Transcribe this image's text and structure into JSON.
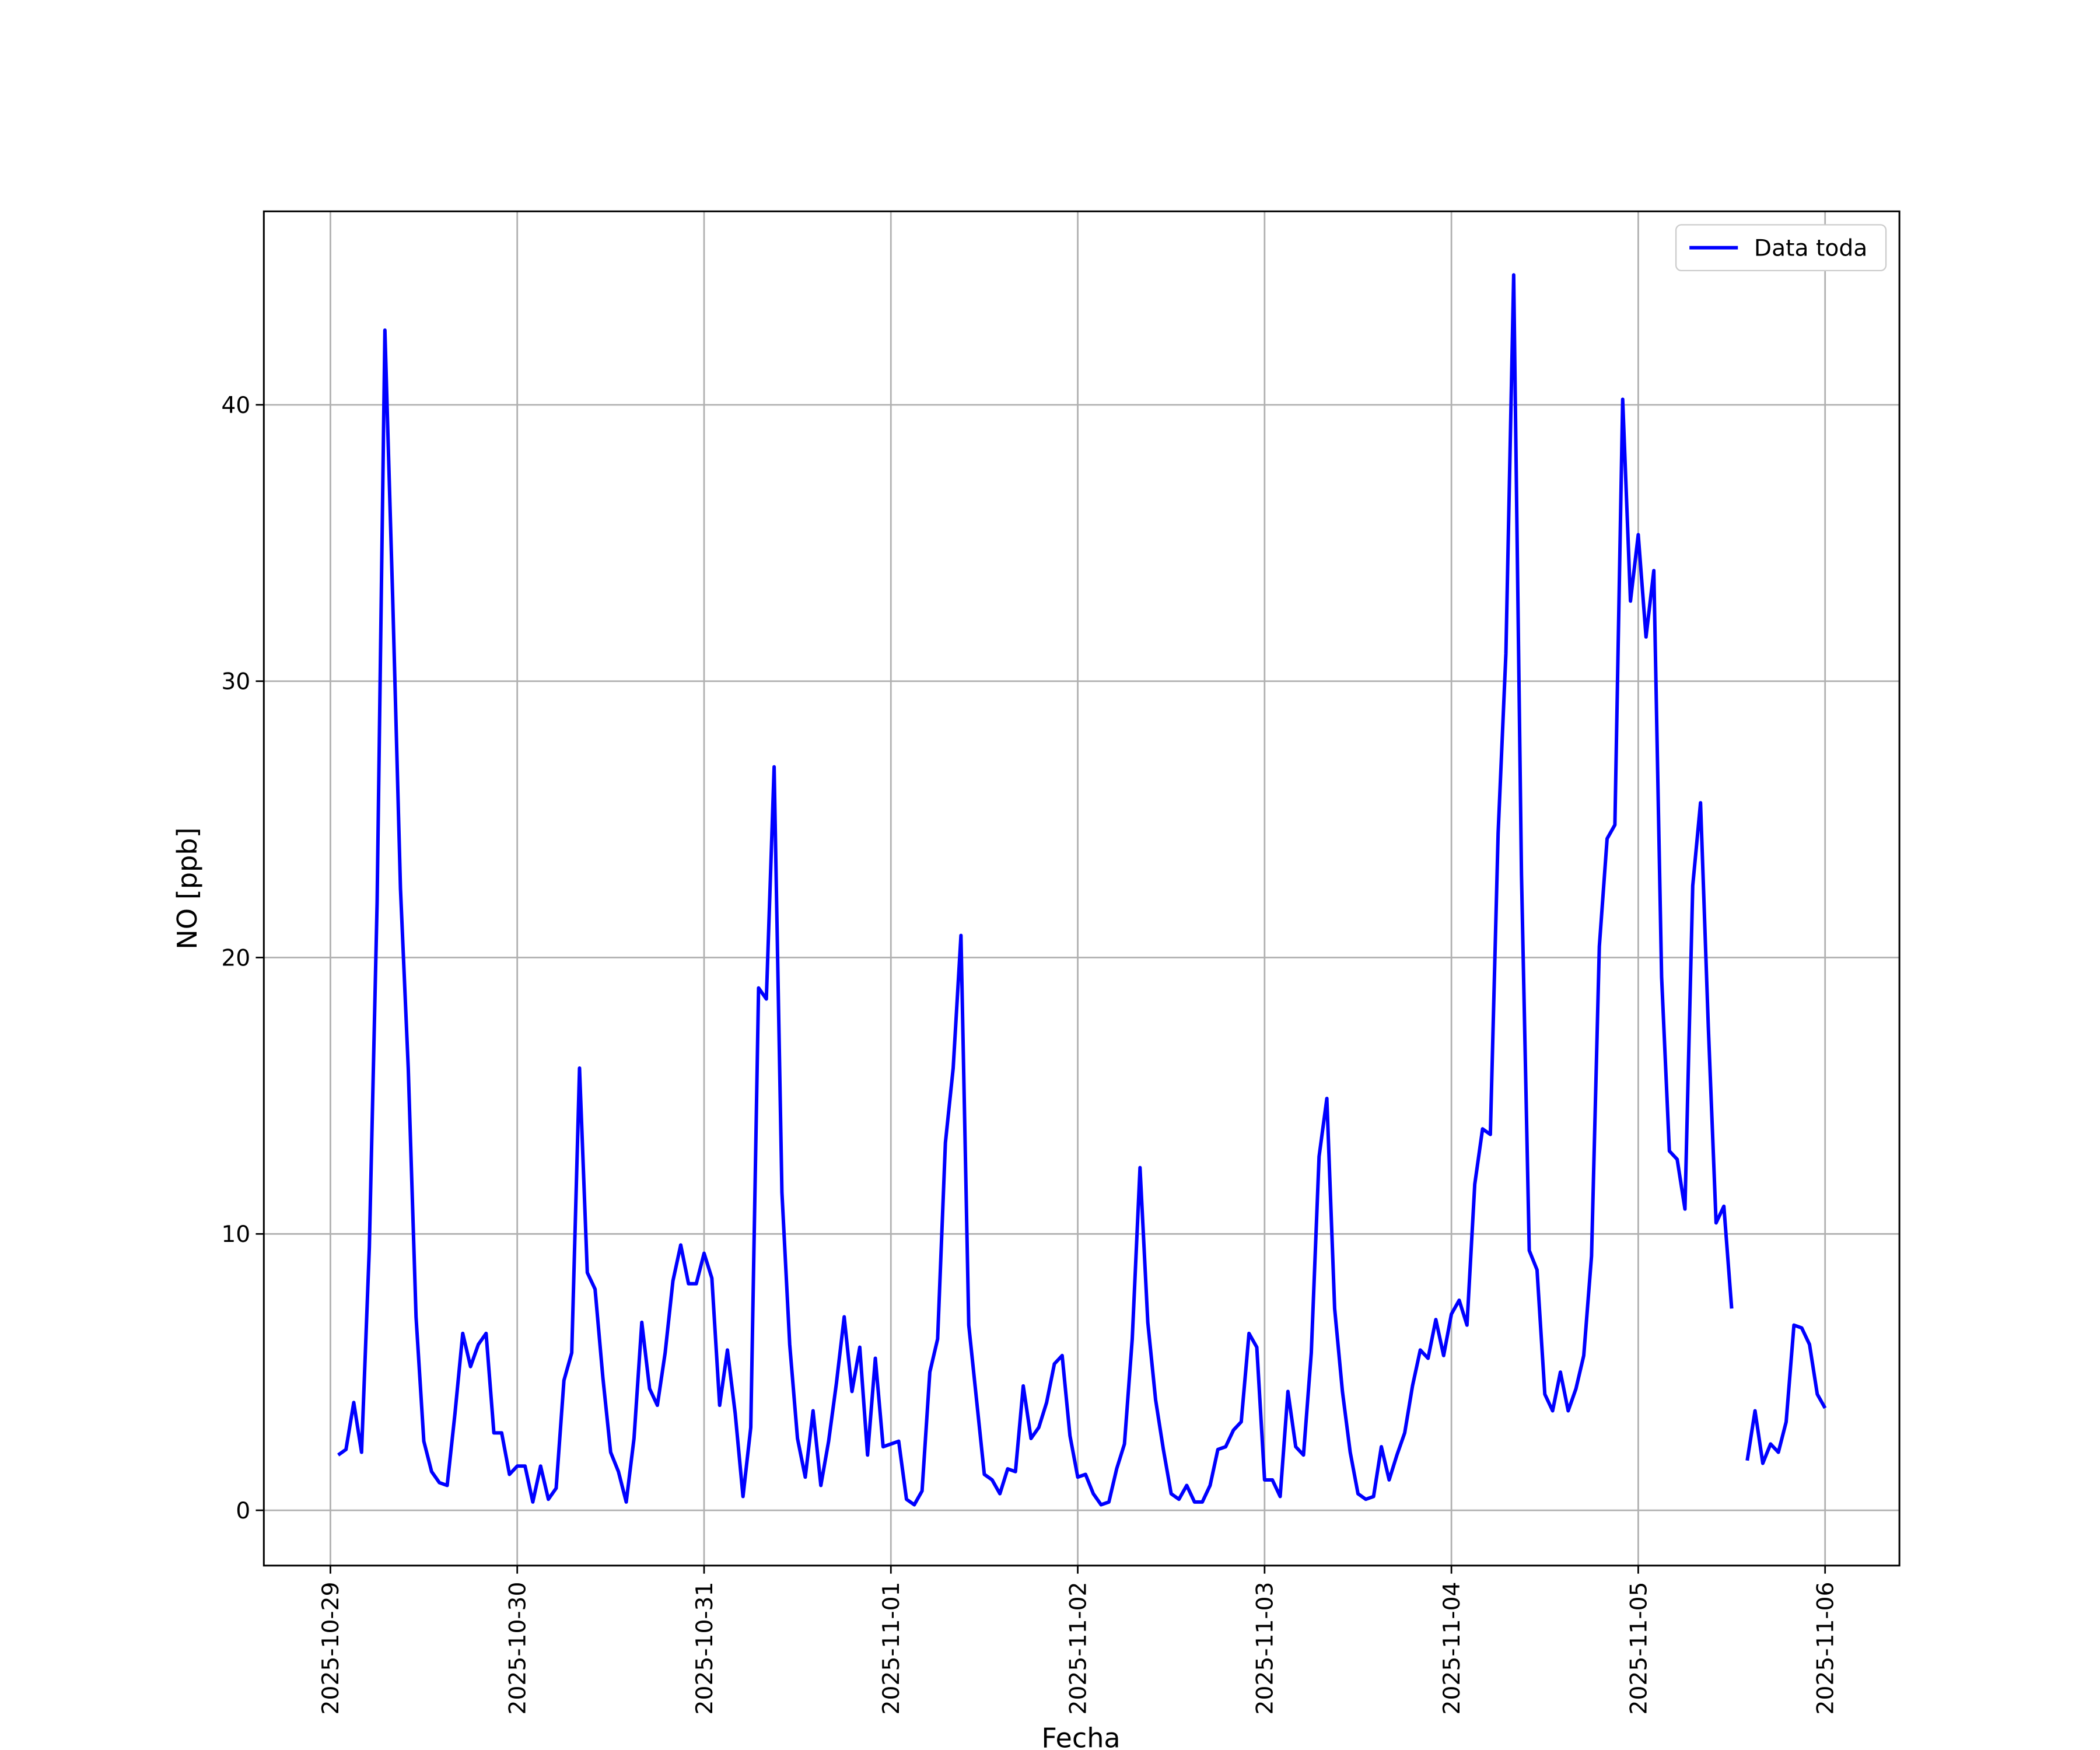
{
  "chart_data": {
    "type": "line",
    "xlabel": "Fecha",
    "ylabel": "NO [ppb]",
    "grid": true,
    "legend": "upper right",
    "x": [
      "2025-10-29T01:00",
      "2025-10-29T02:00",
      "2025-10-29T03:00",
      "2025-10-29T04:00",
      "2025-10-29T05:00",
      "2025-10-29T06:00",
      "2025-10-29T07:00",
      "2025-10-29T08:00",
      "2025-10-29T09:00",
      "2025-10-29T10:00",
      "2025-10-29T11:00",
      "2025-10-29T12:00",
      "2025-10-29T13:00",
      "2025-10-29T14:00",
      "2025-10-29T15:00",
      "2025-10-29T16:00",
      "2025-10-29T17:00",
      "2025-10-29T18:00",
      "2025-10-29T19:00",
      "2025-10-29T20:00",
      "2025-10-29T21:00",
      "2025-10-29T22:00",
      "2025-10-29T23:00",
      "2025-10-30T00:00",
      "2025-10-30T01:00",
      "2025-10-30T02:00",
      "2025-10-30T03:00",
      "2025-10-30T04:00",
      "2025-10-30T05:00",
      "2025-10-30T06:00",
      "2025-10-30T07:00",
      "2025-10-30T08:00",
      "2025-10-30T09:00",
      "2025-10-30T10:00",
      "2025-10-30T11:00",
      "2025-10-30T12:00",
      "2025-10-30T13:00",
      "2025-10-30T14:00",
      "2025-10-30T15:00",
      "2025-10-30T16:00",
      "2025-10-30T17:00",
      "2025-10-30T18:00",
      "2025-10-30T19:00",
      "2025-10-30T20:00",
      "2025-10-30T21:00",
      "2025-10-30T22:00",
      "2025-10-30T23:00",
      "2025-10-31T00:00",
      "2025-10-31T01:00",
      "2025-10-31T02:00",
      "2025-10-31T03:00",
      "2025-10-31T04:00",
      "2025-10-31T05:00",
      "2025-10-31T06:00",
      "2025-10-31T07:00",
      "2025-10-31T08:00",
      "2025-10-31T09:00",
      "2025-10-31T10:00",
      "2025-10-31T11:00",
      "2025-10-31T12:00",
      "2025-10-31T13:00",
      "2025-10-31T14:00",
      "2025-10-31T15:00",
      "2025-10-31T16:00",
      "2025-10-31T17:00",
      "2025-10-31T18:00",
      "2025-10-31T19:00",
      "2025-10-31T20:00",
      "2025-10-31T21:00",
      "2025-10-31T22:00",
      "2025-10-31T23:00",
      "2025-11-01T00:00",
      "2025-11-01T01:00",
      "2025-11-01T02:00",
      "2025-11-01T03:00",
      "2025-11-01T04:00",
      "2025-11-01T05:00",
      "2025-11-01T06:00",
      "2025-11-01T07:00",
      "2025-11-01T08:00",
      "2025-11-01T09:00",
      "2025-11-01T10:00",
      "2025-11-01T11:00",
      "2025-11-01T12:00",
      "2025-11-01T13:00",
      "2025-11-01T14:00",
      "2025-11-01T15:00",
      "2025-11-01T16:00",
      "2025-11-01T17:00",
      "2025-11-01T18:00",
      "2025-11-01T19:00",
      "2025-11-01T20:00",
      "2025-11-01T21:00",
      "2025-11-01T22:00",
      "2025-11-01T23:00",
      "2025-11-02T00:00",
      "2025-11-02T01:00",
      "2025-11-02T02:00",
      "2025-11-02T03:00",
      "2025-11-02T04:00",
      "2025-11-02T05:00",
      "2025-11-02T06:00",
      "2025-11-02T07:00",
      "2025-11-02T08:00",
      "2025-11-02T09:00",
      "2025-11-02T10:00",
      "2025-11-02T11:00",
      "2025-11-02T12:00",
      "2025-11-02T13:00",
      "2025-11-02T14:00",
      "2025-11-02T15:00",
      "2025-11-02T16:00",
      "2025-11-02T17:00",
      "2025-11-02T18:00",
      "2025-11-02T19:00",
      "2025-11-02T20:00",
      "2025-11-02T21:00",
      "2025-11-02T22:00",
      "2025-11-02T23:00",
      "2025-11-03T00:00",
      "2025-11-03T01:00",
      "2025-11-03T02:00",
      "2025-11-03T03:00",
      "2025-11-03T04:00",
      "2025-11-03T05:00",
      "2025-11-03T06:00",
      "2025-11-03T07:00",
      "2025-11-03T08:00",
      "2025-11-03T09:00",
      "2025-11-03T10:00",
      "2025-11-03T11:00",
      "2025-11-03T12:00",
      "2025-11-03T13:00",
      "2025-11-03T14:00",
      "2025-11-03T15:00",
      "2025-11-03T16:00",
      "2025-11-03T17:00",
      "2025-11-03T18:00",
      "2025-11-03T19:00",
      "2025-11-03T20:00",
      "2025-11-03T21:00",
      "2025-11-03T22:00",
      "2025-11-03T23:00",
      "2025-11-04T00:00",
      "2025-11-04T01:00",
      "2025-11-04T02:00",
      "2025-11-04T03:00",
      "2025-11-04T04:00",
      "2025-11-04T05:00",
      "2025-11-04T06:00",
      "2025-11-04T07:00",
      "2025-11-04T08:00",
      "2025-11-04T09:00",
      "2025-11-04T10:00",
      "2025-11-04T11:00",
      "2025-11-04T12:00",
      "2025-11-04T13:00",
      "2025-11-04T14:00",
      "2025-11-04T15:00",
      "2025-11-04T16:00",
      "2025-11-04T17:00",
      "2025-11-04T18:00",
      "2025-11-04T19:00",
      "2025-11-04T20:00",
      "2025-11-04T21:00",
      "2025-11-04T22:00",
      "2025-11-04T23:00",
      "2025-11-05T00:00",
      "2025-11-05T01:00",
      "2025-11-05T02:00",
      "2025-11-05T03:00",
      "2025-11-05T04:00",
      "2025-11-05T05:00",
      "2025-11-05T06:00",
      "2025-11-05T07:00",
      "2025-11-05T08:00",
      "2025-11-05T09:00",
      "2025-11-05T10:00",
      "2025-11-05T11:00",
      "2025-11-05T12:00",
      "2025-11-05T13:00",
      "2025-11-05T14:00",
      "2025-11-05T15:00",
      "2025-11-05T16:00",
      "2025-11-05T17:00",
      "2025-11-05T18:00",
      "2025-11-05T19:00",
      "2025-11-05T20:00",
      "2025-11-05T21:00",
      "2025-11-05T22:00",
      "2025-11-05T23:00",
      "2025-11-06T00:00"
    ],
    "series": [
      {
        "name": "Data toda",
        "color": "#0000ff",
        "values": [
          2.0,
          2.2,
          3.9,
          2.1,
          9.5,
          22,
          42.7,
          33,
          22.5,
          16,
          7.0,
          2.5,
          1.4,
          1.0,
          0.9,
          3.5,
          6.4,
          5.2,
          6.0,
          6.4,
          2.8,
          2.8,
          1.3,
          1.6,
          1.6,
          0.3,
          1.6,
          0.4,
          0.8,
          4.7,
          5.7,
          16.0,
          8.6,
          8.0,
          4.8,
          2.1,
          1.4,
          0.3,
          2.6,
          6.8,
          4.4,
          3.8,
          5.7,
          8.3,
          9.6,
          8.2,
          8.2,
          9.3,
          8.4,
          3.8,
          5.8,
          3.5,
          0.5,
          3.0,
          18.9,
          18.5,
          26.9,
          11.5,
          6.0,
          2.6,
          1.2,
          3.6,
          0.9,
          2.5,
          4.6,
          7.0,
          4.3,
          5.9,
          2.0,
          5.5,
          2.3,
          2.4,
          2.5,
          0.4,
          0.2,
          0.7,
          5.0,
          6.2,
          13.3,
          16.0,
          20.8,
          6.7,
          4.0,
          1.3,
          1.1,
          0.6,
          1.5,
          1.4,
          4.5,
          2.6,
          3.0,
          3.9,
          5.3,
          5.6,
          2.7,
          1.2,
          1.3,
          0.6,
          0.2,
          0.3,
          1.5,
          2.4,
          6.2,
          12.4,
          6.8,
          4.0,
          2.2,
          0.6,
          0.4,
          0.9,
          0.3,
          0.3,
          0.9,
          2.2,
          2.3,
          2.9,
          3.2,
          6.4,
          5.9,
          1.1,
          1.1,
          0.5,
          4.3,
          2.3,
          2.0,
          5.7,
          12.8,
          14.9,
          7.3,
          4.3,
          2.1,
          0.6,
          0.4,
          0.5,
          2.3,
          1.1,
          2.0,
          2.8,
          4.5,
          5.8,
          5.5,
          6.9,
          5.6,
          7.1,
          7.6,
          6.7,
          11.8,
          13.8,
          13.6,
          24.5,
          31,
          44.7,
          23,
          9.4,
          8.7,
          4.2,
          3.6,
          5.0,
          3.6,
          4.4,
          5.6,
          9.2,
          20.4,
          24.3,
          24.8,
          40.2,
          32.9,
          35.3,
          31.6,
          34.0,
          19.3,
          13.0,
          12.7,
          10.9,
          22.6,
          25.6,
          17.5,
          10.4,
          11.0,
          7.3,
          null,
          1.8,
          3.6,
          1.7,
          2.4,
          2.1,
          3.2,
          6.7,
          6.6,
          6.0,
          4.2,
          3.7
        ]
      }
    ],
    "xlim": [
      "2025-10-28T15:27",
      "2025-11-06T09:33"
    ],
    "xticks": [
      "2025-10-29",
      "2025-10-30",
      "2025-10-31",
      "2025-11-01",
      "2025-11-02",
      "2025-11-03",
      "2025-11-04",
      "2025-11-05",
      "2025-11-06"
    ],
    "ylim": [
      -2.0,
      47.0
    ],
    "yticks": [
      0,
      10,
      20,
      30,
      40
    ]
  }
}
